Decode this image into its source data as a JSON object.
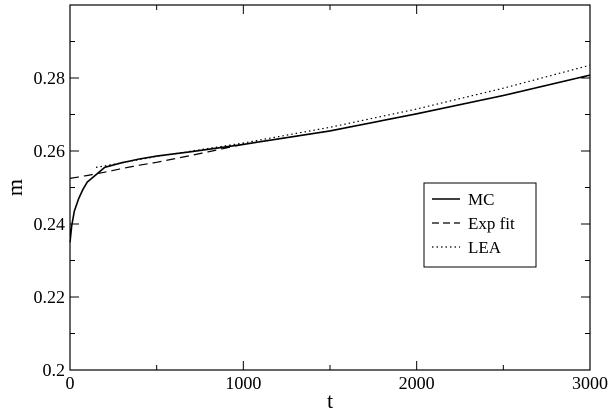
{
  "chart_data": {
    "type": "line",
    "title": "",
    "xlabel": "t",
    "ylabel": "m",
    "xlim": [
      0,
      3000
    ],
    "ylim": [
      0.2,
      0.3
    ],
    "x_ticks": [
      0,
      1000,
      2000,
      3000
    ],
    "x_tick_labels": [
      "0",
      "1000",
      "2000",
      "3000"
    ],
    "y_ticks": [
      0.2,
      0.22,
      0.24,
      0.26,
      0.28
    ],
    "y_tick_labels": [
      "0.2",
      "0.22",
      "0.24",
      "0.26",
      "0.28"
    ],
    "grid": false,
    "legend_position": "right",
    "series": [
      {
        "name": "MC",
        "style": "solid",
        "color": "#000000",
        "x": [
          0,
          10,
          25,
          50,
          75,
          100,
          150,
          200,
          300,
          400,
          500,
          700,
          1000,
          1500,
          2000,
          2500,
          3000
        ],
        "y": [
          0.235,
          0.2395,
          0.2435,
          0.247,
          0.2495,
          0.2515,
          0.2535,
          0.2555,
          0.2568,
          0.2578,
          0.2586,
          0.2598,
          0.2618,
          0.2655,
          0.2702,
          0.2752,
          0.2808
        ]
      },
      {
        "name": "Exp fit",
        "style": "dashed",
        "color": "#000000",
        "x": [
          0,
          100,
          200,
          300,
          400,
          500,
          700,
          1000,
          1500,
          2000,
          2500,
          3000
        ],
        "y": [
          0.2525,
          0.2533,
          0.2542,
          0.2552,
          0.2561,
          0.2569,
          0.2588,
          0.2618,
          0.2655,
          0.2702,
          0.2752,
          0.2808
        ]
      },
      {
        "name": "LEA",
        "style": "dotted",
        "color": "#000000",
        "x": [
          150,
          500,
          1000,
          1500,
          2000,
          2500,
          3000
        ],
        "y": [
          0.2555,
          0.2585,
          0.2622,
          0.2665,
          0.2715,
          0.2772,
          0.2835
        ]
      }
    ]
  }
}
